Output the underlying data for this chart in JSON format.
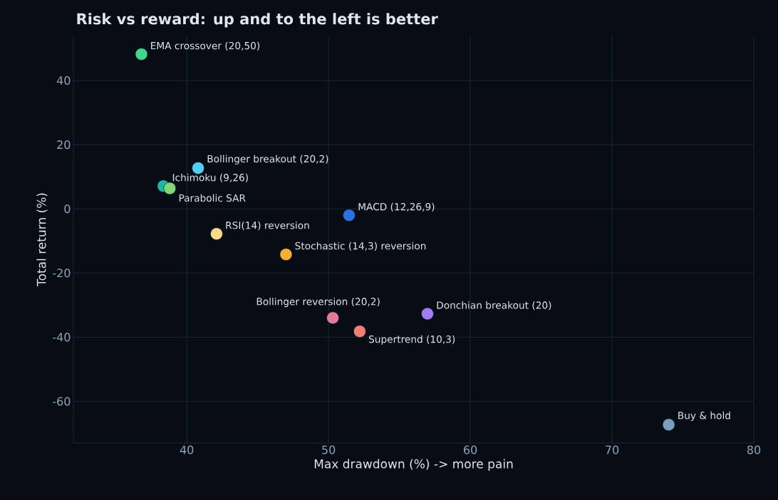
{
  "chart_data": {
    "type": "scatter",
    "title": "Risk vs reward: up and to the left is better",
    "xlabel": "Max drawdown (%)  ->  more pain",
    "ylabel": "Total return (%)",
    "x": [
      36.8,
      40.8,
      38.35,
      38.8,
      51.45,
      42.1,
      47.0,
      50.3,
      56.98,
      52.2,
      74.0
    ],
    "values": [
      48.2,
      12.7,
      7.1,
      6.4,
      -2.0,
      -7.8,
      -14.2,
      -34.0,
      -32.7,
      -38.2,
      -67.3
    ],
    "colors": [
      "#3dd68c",
      "#4fcff5",
      "#1fb5a8",
      "#7dd87a",
      "#2a72e0",
      "#f8d98e",
      "#f4b034",
      "#e07b9c",
      "#a07ef0",
      "#f07f76",
      "#7a9ebf"
    ],
    "annotations": [
      {
        "text": "EMA crossover (20,50)",
        "x": 36.8,
        "y": 48.2
      },
      {
        "text": "Bollinger breakout (20,2)",
        "x": 40.8,
        "y": 12.7
      },
      {
        "text": "Ichimoku (9,26)",
        "x": 38.35,
        "y": 7.1
      },
      {
        "text": "Parabolic SAR",
        "x": 38.8,
        "y": 6.4
      },
      {
        "text": "MACD (12,26,9)",
        "x": 51.45,
        "y": -2.0
      },
      {
        "text": "RSI(14) reversion",
        "x": 42.1,
        "y": -7.8
      },
      {
        "text": "Stochastic (14,3) reversion",
        "x": 47.0,
        "y": -14.2
      },
      {
        "text": "Bollinger reversion (20,2)",
        "x": 50.3,
        "y": -34.0
      },
      {
        "text": "Donchian breakout (20)",
        "x": 56.98,
        "y": -32.7
      },
      {
        "text": "Supertrend (10,3)",
        "x": 52.2,
        "y": -38.2
      },
      {
        "text": "Buy & hold",
        "x": 74.0,
        "y": -67.3
      }
    ],
    "xlim": [
      32,
      80
    ],
    "ylim": [
      -73,
      54
    ],
    "xticks": [
      40,
      50,
      60,
      70,
      80
    ],
    "yticks": [
      -60,
      -40,
      -20,
      0,
      20,
      40
    ],
    "grid": true,
    "marker": "circle"
  }
}
